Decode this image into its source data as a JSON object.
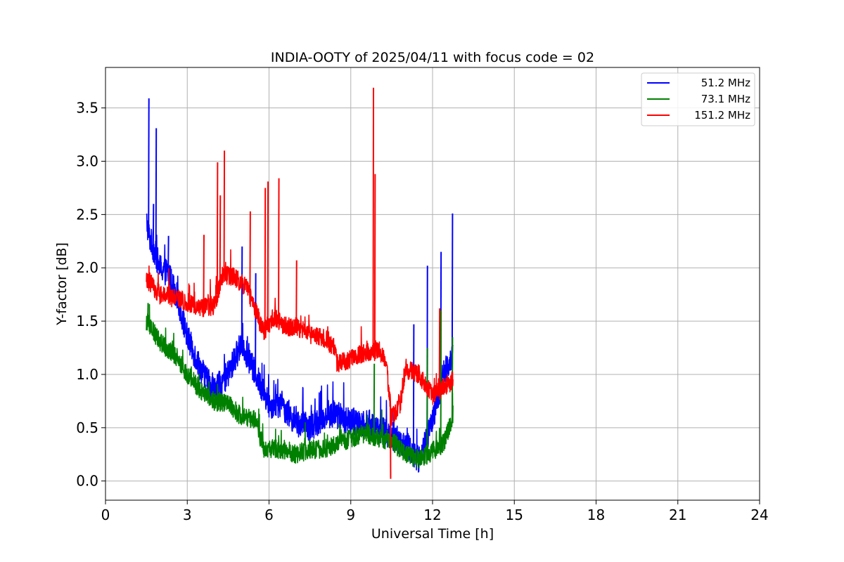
{
  "chart_data": {
    "type": "line",
    "title": "INDIA-OOTY of 2025/04/11 with focus code = 02",
    "xlabel": "Universal Time [h]",
    "ylabel": "Y-factor [dB]",
    "xlim": [
      0,
      24
    ],
    "ylim": [
      -0.18,
      3.88
    ],
    "xticks": [
      0,
      3,
      6,
      9,
      12,
      15,
      18,
      21,
      24
    ],
    "yticks": [
      0.0,
      0.5,
      1.0,
      1.5,
      2.0,
      2.5,
      3.0,
      3.5
    ],
    "ytick_labels": [
      "0.0",
      "0.5",
      "1.0",
      "1.5",
      "2.0",
      "2.5",
      "3.0",
      "3.5"
    ],
    "grid": true,
    "legend_position": "top-right",
    "series": [
      {
        "name": "51.2 MHz",
        "color": "#0000ff",
        "noise": 0.13,
        "x": [
          1.5,
          1.6,
          1.8,
          2.0,
          2.3,
          2.6,
          3.0,
          3.5,
          4.0,
          4.5,
          5.0,
          5.5,
          6.0,
          6.5,
          7.0,
          7.5,
          8.0,
          8.5,
          9.0,
          9.5,
          10.0,
          10.5,
          11.0,
          11.5,
          12.0,
          12.4,
          12.75
        ],
        "y": [
          2.45,
          2.3,
          2.15,
          2.0,
          1.95,
          1.75,
          1.35,
          1.05,
          0.85,
          1.0,
          1.3,
          1.0,
          0.72,
          0.7,
          0.55,
          0.5,
          0.6,
          0.62,
          0.55,
          0.55,
          0.5,
          0.42,
          0.35,
          0.2,
          0.55,
          1.0,
          1.2
        ],
        "spikes": [
          [
            1.58,
            3.59
          ],
          [
            1.85,
            3.31
          ],
          [
            1.75,
            2.6
          ],
          [
            2.3,
            2.3
          ],
          [
            5.0,
            2.2
          ],
          [
            5.5,
            1.95
          ],
          [
            11.3,
            1.47
          ],
          [
            11.8,
            2.02
          ],
          [
            12.3,
            2.15
          ],
          [
            12.72,
            2.51
          ]
        ]
      },
      {
        "name": "73.1 MHz",
        "color": "#008000",
        "noise": 0.09,
        "x": [
          1.5,
          2.0,
          2.5,
          3.0,
          3.5,
          4.0,
          4.5,
          5.0,
          5.5,
          5.8,
          6.5,
          7.0,
          7.5,
          8.0,
          8.5,
          9.0,
          9.5,
          10.0,
          10.5,
          11.0,
          11.5,
          12.0,
          12.4,
          12.75
        ],
        "y": [
          1.5,
          1.3,
          1.2,
          1.0,
          0.85,
          0.75,
          0.72,
          0.6,
          0.58,
          0.3,
          0.3,
          0.25,
          0.3,
          0.3,
          0.35,
          0.4,
          0.45,
          0.4,
          0.38,
          0.25,
          0.2,
          0.28,
          0.35,
          0.6
        ],
        "spikes": [
          [
            1.55,
            1.67
          ],
          [
            9.85,
            1.1
          ],
          [
            11.8,
            1.25
          ],
          [
            12.3,
            1.6
          ],
          [
            12.72,
            1.35
          ]
        ]
      },
      {
        "name": "151.2 MHz",
        "color": "#ff0000",
        "noise": 0.09,
        "x": [
          1.5,
          2.0,
          2.5,
          3.0,
          3.5,
          4.0,
          4.3,
          4.8,
          5.2,
          5.5,
          5.8,
          6.2,
          6.5,
          7.0,
          7.5,
          8.0,
          8.4,
          8.5,
          9.0,
          9.5,
          9.8,
          10.0,
          10.3,
          10.5,
          10.8,
          11.0,
          11.5,
          12.0,
          12.3,
          12.75
        ],
        "y": [
          1.9,
          1.75,
          1.72,
          1.68,
          1.62,
          1.65,
          1.95,
          1.9,
          1.8,
          1.6,
          1.4,
          1.55,
          1.45,
          1.45,
          1.38,
          1.35,
          1.25,
          1.1,
          1.15,
          1.2,
          1.2,
          1.25,
          1.1,
          0.6,
          0.7,
          1.05,
          1.0,
          0.8,
          0.85,
          0.95
        ],
        "spikes": [
          [
            4.1,
            2.99
          ],
          [
            4.2,
            2.68
          ],
          [
            4.35,
            3.1
          ],
          [
            3.6,
            2.31
          ],
          [
            5.3,
            2.53
          ],
          [
            5.85,
            2.75
          ],
          [
            5.95,
            2.81
          ],
          [
            6.35,
            2.84
          ],
          [
            7.0,
            2.07
          ],
          [
            9.82,
            3.69
          ],
          [
            9.88,
            2.88
          ],
          [
            10.45,
            0.02
          ],
          [
            12.25,
            1.62
          ]
        ]
      }
    ]
  }
}
